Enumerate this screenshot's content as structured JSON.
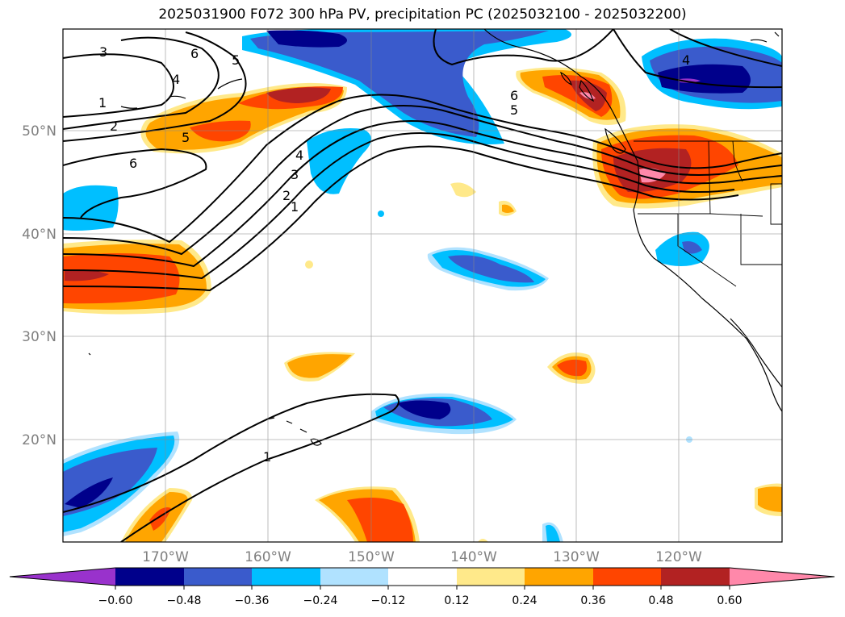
{
  "title": "2025031900 F072 300 hPa PV, precipitation PC (2025032100 - 2025032200)",
  "latitude_labels": [
    "50°N",
    "40°N",
    "30°N",
    "20°N"
  ],
  "longitude_labels": [
    "170°W",
    "160°W",
    "150°W",
    "140°W",
    "130°W",
    "120°W"
  ],
  "colorbar": {
    "tick_labels": [
      "−0.60",
      "−0.48",
      "−0.36",
      "−0.24",
      "−0.12",
      "0.12",
      "0.24",
      "0.36",
      "0.48",
      "0.60"
    ],
    "colors": [
      "#9932cc",
      "#00008b",
      "#3a5bcc",
      "#00bfff",
      "#b0e2ff",
      "#ffffff",
      "#ffe98a",
      "#ffa500",
      "#ff4500",
      "#b22222",
      "#ff88aa"
    ]
  },
  "pv_contour_labels": [
    "1",
    "2",
    "3",
    "4",
    "5",
    "6"
  ]
}
